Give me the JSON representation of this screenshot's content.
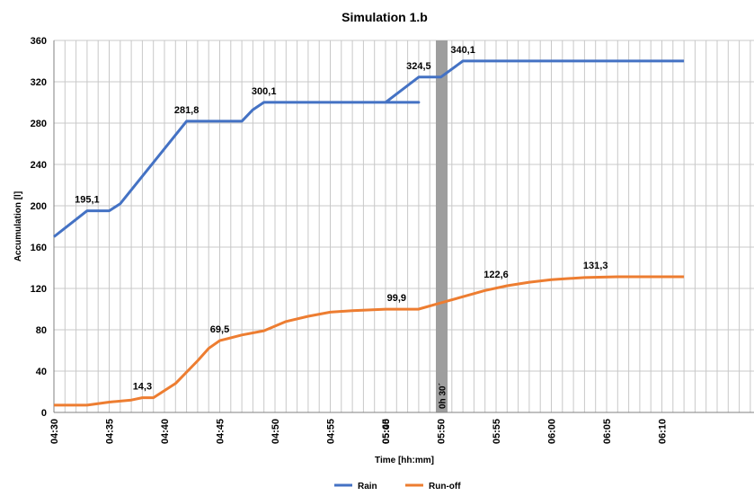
{
  "chart_data": {
    "type": "line",
    "title": "Simulation 1.b",
    "xlabel": "Time [hh:mm]",
    "ylabel": "Accumulation [l]",
    "ylim": [
      0,
      360
    ],
    "yticks": [
      "0",
      "40",
      "80",
      "120",
      "160",
      "200",
      "240",
      "280",
      "320",
      "360"
    ],
    "categories": [
      "04:30",
      "04:35",
      "04:40",
      "04:45",
      "04:50",
      "04:55",
      "05:00",
      "05:45",
      "05:50",
      "05:55",
      "06:00",
      "06:05",
      "06:10"
    ],
    "grid": true,
    "legend_position": "bottom",
    "break_band": {
      "label": "0h 30´",
      "between": [
        "05:00",
        "05:45"
      ]
    },
    "series": [
      {
        "name": "Rain",
        "color": "#4472C4",
        "x": [
          "04:30",
          "04:33",
          "04:35",
          "04:36",
          "04:42",
          "04:47",
          "04:48",
          "04:49",
          "05:00",
          "05:03",
          "05:45",
          "05:48",
          "05:50",
          "05:52",
          "06:12"
        ],
        "values": [
          170,
          195.1,
          195.1,
          202,
          281.8,
          281.8,
          293,
          300.1,
          300.1,
          300.1,
          300.1,
          324.5,
          324.5,
          340.1,
          340.1
        ],
        "labels": [
          {
            "x": "04:33",
            "value": 195.1,
            "text": "195,1"
          },
          {
            "x": "04:42",
            "value": 281.8,
            "text": "281,8"
          },
          {
            "x": "04:49",
            "value": 300.1,
            "text": "300,1"
          },
          {
            "x": "05:48",
            "value": 324.5,
            "text": "324,5"
          },
          {
            "x": "05:52",
            "value": 340.1,
            "text": "340,1"
          }
        ]
      },
      {
        "name": "Run-off",
        "color": "#ED7D31",
        "x": [
          "04:30",
          "04:33",
          "04:35",
          "04:37",
          "04:38",
          "04:39",
          "04:41",
          "04:43",
          "04:44",
          "04:45",
          "04:47",
          "04:49",
          "04:51",
          "04:53",
          "04:55",
          "04:57",
          "05:00",
          "05:02",
          "05:03",
          "05:45",
          "05:48",
          "05:50",
          "05:52",
          "05:54",
          "05:56",
          "05:58",
          "06:00",
          "06:03",
          "06:06",
          "06:12"
        ],
        "values": [
          7,
          7,
          10,
          12,
          14.3,
          14.3,
          28,
          50,
          62,
          69.5,
          75,
          79,
          88,
          93,
          97,
          98.5,
          99.9,
          99.9,
          99.9,
          99.9,
          100,
          106,
          112,
          118,
          122.6,
          126,
          128.5,
          130.5,
          131.3,
          131.3
        ],
        "labels": [
          {
            "x": "04:38",
            "value": 14.3,
            "text": "14,3"
          },
          {
            "x": "04:45",
            "value": 69.5,
            "text": "69,5"
          },
          {
            "x": "05:01",
            "value": 99.9,
            "text": "99,9"
          },
          {
            "x": "05:55",
            "value": 122.6,
            "text": "122,6"
          },
          {
            "x": "06:04",
            "value": 131.3,
            "text": "131,3"
          }
        ]
      }
    ]
  }
}
